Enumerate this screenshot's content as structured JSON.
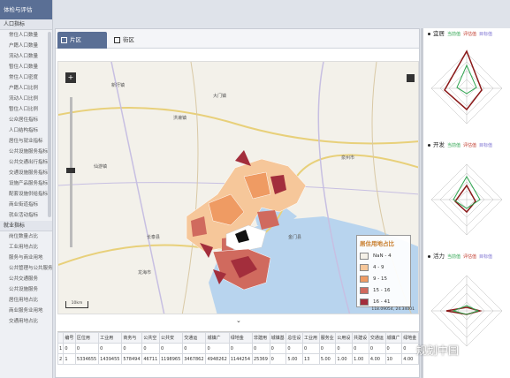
{
  "sidebar": {
    "title": "体检与评估",
    "section1": "人口指标",
    "items1": [
      "常住人口数量",
      "户籍人口数量",
      "流动人口数量",
      "暂住人口数量",
      "常住人口密度",
      "户籍人口比例",
      "流动人口比例",
      "暂住人口比例",
      "公众居住指标",
      "人口结构指标",
      "居住与就业指标",
      "公共设施服务指标",
      "公共交通出行指标",
      "交通设施服务指标",
      "设施产品服务指标",
      "配套设施供给指标",
      "商业街道指标",
      "就业活动指标"
    ],
    "section2": "就业指标",
    "items2": [
      "岗位数量占比",
      "工业用地占比",
      "服务与商业用地",
      "公共管理与公共服务",
      "公共交通服务",
      "公共设施服务",
      "居住用地占比",
      "商业服务业用地",
      "交通用地占比"
    ]
  },
  "tabs": [
    "片区",
    "街区"
  ],
  "legend": {
    "title": "居住用地占比",
    "items": [
      {
        "label": "NaN - 4",
        "color": "#f5f1e8"
      },
      {
        "label": "4 - 9",
        "color": "#f6c79a"
      },
      {
        "label": "9 - 15",
        "color": "#ef9b63"
      },
      {
        "label": "15 - 16",
        "color": "#d06a5e"
      },
      {
        "label": "16 - 41",
        "color": "#a32e3c"
      }
    ]
  },
  "map": {
    "scale": "10km",
    "coords": "118.09054, 24.34001",
    "collapse": "⌄"
  },
  "table": {
    "headers": [
      "",
      "编号",
      "区位用",
      "工业用",
      "商务与",
      "公共空",
      "公共安",
      "交通运",
      "城镇广",
      "绿地金",
      "非建用",
      "城镇基",
      "总住设",
      "工业用",
      "服务业",
      "公用设",
      "共建设",
      "交通运",
      "城镇广",
      "绿地金"
    ],
    "rows": [
      [
        "1",
        "0",
        "0",
        "0",
        "0",
        "0",
        "0",
        "0",
        "0",
        "0",
        "0",
        "0",
        "0",
        "0",
        "0",
        "0",
        "0",
        "0",
        "0",
        "0"
      ],
      [
        "2",
        "1",
        "5334655",
        "1439455",
        "578494",
        "46711",
        "1198965",
        "3467862",
        "4948262",
        "1144254",
        "25369",
        "0",
        "5.00",
        "13",
        "5.00",
        "1.00",
        "1.00",
        "4.00",
        "10",
        "4.00"
      ]
    ]
  },
  "right": {
    "panels": [
      {
        "title": "宜居",
        "legend": [
          "当前值",
          "评估值",
          "目标值"
        ]
      },
      {
        "title": "开发",
        "legend": [
          "当前值",
          "评估值",
          "目标值"
        ]
      },
      {
        "title": "活力",
        "legend": [
          "当前值",
          "评估值",
          "目标值"
        ]
      }
    ]
  },
  "watermark": "规划中国",
  "colors": {
    "header": "#5a6f95",
    "series_red": "#c0392b",
    "series_green": "#2ea44f"
  }
}
